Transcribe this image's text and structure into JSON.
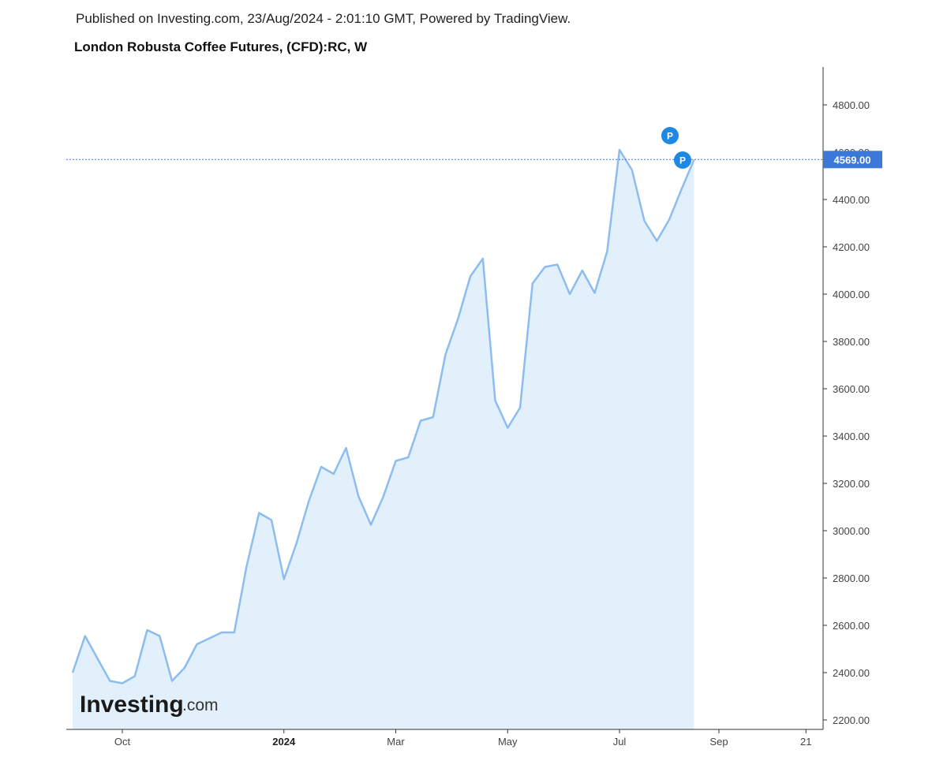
{
  "header": {
    "published": "Published on Investing.com, 23/Aug/2024 - 2:01:10 GMT, Powered by TradingView.",
    "title": "London Robusta Coffee Futures, (CFD):RC, W"
  },
  "colors": {
    "line": "#8dbdf0",
    "fill": "#e1f0fa",
    "price_badge": "#3c78d8",
    "marker": "#1e88e5",
    "axis": "#333333"
  },
  "logo": {
    "brand": "Investing",
    "suffix": ".com"
  },
  "markers": {
    "label": "P"
  },
  "chart_data": {
    "type": "area",
    "title": "London Robusta Coffee Futures, (CFD):RC, W",
    "xlabel": "",
    "ylabel": "",
    "ylim": [
      2160,
      4960
    ],
    "y_ticks": [
      "2200.00",
      "2400.00",
      "2600.00",
      "2800.00",
      "3000.00",
      "3200.00",
      "3400.00",
      "3600.00",
      "3800.00",
      "4000.00",
      "4200.00",
      "4400.00",
      "4600.00",
      "4800.00"
    ],
    "x_ticks": [
      {
        "label": "Oct",
        "week": 4
      },
      {
        "label": "2024",
        "week": 17,
        "bold": true
      },
      {
        "label": "Mar",
        "week": 26
      },
      {
        "label": "May",
        "week": 35
      },
      {
        "label": "Jul",
        "week": 44
      },
      {
        "label": "Sep",
        "week": 52
      },
      {
        "label": "21",
        "week": 59
      }
    ],
    "last_price": "4569.00",
    "last_price_value": 4569,
    "grid": false,
    "x": [
      0,
      1,
      2,
      3,
      4,
      5,
      6,
      7,
      8,
      9,
      10,
      11,
      12,
      13,
      14,
      15,
      16,
      17,
      18,
      19,
      20,
      21,
      22,
      23,
      24,
      25,
      26,
      27,
      28,
      29,
      30,
      31,
      32,
      33,
      34,
      35,
      36,
      37,
      38,
      39,
      40,
      41,
      42,
      43,
      44,
      45,
      46,
      47,
      48,
      49,
      50
    ],
    "values": [
      2400,
      2555,
      2460,
      2365,
      2355,
      2385,
      2580,
      2555,
      2365,
      2420,
      2520,
      2545,
      2570,
      2570,
      2850,
      3075,
      3045,
      2795,
      2945,
      3125,
      3270,
      3240,
      3350,
      3145,
      3025,
      3145,
      3295,
      3310,
      3465,
      3480,
      3745,
      3895,
      4075,
      4150,
      3550,
      3435,
      3520,
      4045,
      4115,
      4125,
      4000,
      4100,
      4005,
      4180,
      4610,
      4525,
      4310,
      4225,
      4315,
      4445,
      4569
    ]
  }
}
